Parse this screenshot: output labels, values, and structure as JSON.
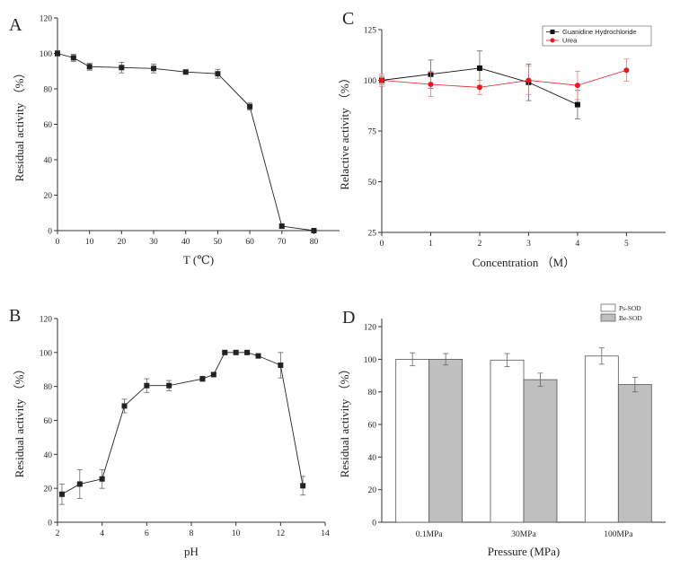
{
  "figure": {
    "panels": [
      {
        "letter": "A"
      },
      {
        "letter": "C"
      },
      {
        "letter": "B"
      },
      {
        "letter": "D"
      }
    ]
  },
  "chart_data": [
    {
      "panel": "A",
      "type": "line",
      "xlabel": "T (℃)",
      "ylabel": "Residual activity （%）",
      "xlim": [
        0,
        88
      ],
      "ylim": [
        0,
        120
      ],
      "xticks": [
        0,
        10,
        20,
        30,
        40,
        50,
        60,
        70,
        80
      ],
      "yticks": [
        0,
        20,
        40,
        60,
        80,
        100,
        120
      ],
      "series": [
        {
          "x": [
            0,
            5,
            10,
            20,
            30,
            40,
            50,
            60,
            70,
            80
          ],
          "values": [
            100,
            97.5,
            92.5,
            92,
            91.5,
            89.5,
            88.5,
            70,
            2.5,
            0
          ],
          "errors": [
            1.5,
            2,
            2,
            3,
            2.5,
            1,
            2.5,
            2,
            1,
            0.5
          ],
          "color": "#222222",
          "marker": "square"
        }
      ]
    },
    {
      "panel": "C",
      "type": "line",
      "xlabel": "Concentration （M）",
      "ylabel": "Relactive activity （%）",
      "xlim": [
        0,
        5.8
      ],
      "ylim": [
        25,
        125
      ],
      "xticks": [
        0,
        1,
        2,
        3,
        4,
        5
      ],
      "yticks": [
        25,
        50,
        75,
        100,
        125
      ],
      "legend_position": "top-right",
      "series": [
        {
          "name": "Guanidine Hydrochloride",
          "x": [
            0,
            1,
            2,
            3,
            4
          ],
          "values": [
            100,
            103,
            106,
            99,
            88
          ],
          "errors": [
            2,
            7,
            8.5,
            9,
            7
          ],
          "color": "#111111",
          "marker": "square"
        },
        {
          "name": "Urea",
          "x": [
            0,
            1,
            2,
            3,
            4,
            5
          ],
          "values": [
            100,
            98,
            96.5,
            100,
            97.5,
            105
          ],
          "errors": [
            3,
            6,
            3.5,
            7,
            7,
            5.5
          ],
          "color": "#e8191f",
          "marker": "circle"
        }
      ]
    },
    {
      "panel": "B",
      "type": "line",
      "xlabel": "pH",
      "ylabel": "Residual activity （%）",
      "xlim": [
        2,
        14
      ],
      "ylim": [
        0,
        120
      ],
      "xticks": [
        2,
        4,
        6,
        8,
        10,
        12,
        14
      ],
      "yticks": [
        0,
        20,
        40,
        60,
        80,
        100,
        120
      ],
      "series": [
        {
          "x": [
            2.2,
            3,
            4,
            5,
            6,
            7,
            8.5,
            9,
            9.5,
            10,
            10.5,
            11,
            12,
            13
          ],
          "values": [
            16.5,
            22.5,
            25.5,
            68.5,
            80.5,
            80.5,
            84.5,
            87,
            100,
            100,
            100,
            98,
            92.5,
            21.5
          ],
          "errors": [
            6,
            8.5,
            5.5,
            4,
            4,
            3,
            1.5,
            1,
            1,
            1,
            1,
            1,
            7.5,
            5.5
          ],
          "color": "#222222",
          "marker": "square"
        }
      ]
    },
    {
      "panel": "D",
      "type": "bar",
      "xlabel": "Pressure (MPa)",
      "ylabel": "Residual activity （%）",
      "categories": [
        "0.1MPa",
        "30MPa",
        "100MPa"
      ],
      "ylim": [
        0,
        125
      ],
      "yticks": [
        0,
        20,
        40,
        60,
        80,
        100,
        120
      ],
      "legend_position": "top-right",
      "series": [
        {
          "name": "Ps-SOD",
          "values": [
            100,
            99.5,
            102
          ],
          "errors": [
            4,
            4,
            5
          ],
          "color": "#ffffff"
        },
        {
          "name": "Be-SOD",
          "values": [
            100,
            87.5,
            84.5
          ],
          "errors": [
            3.5,
            4,
            4.5
          ],
          "color": "#bfbfbf"
        }
      ]
    }
  ]
}
